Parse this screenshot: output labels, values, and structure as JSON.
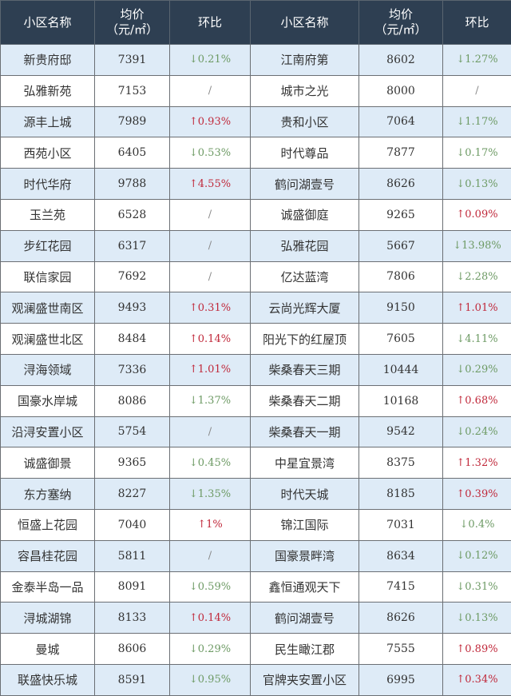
{
  "colors": {
    "header_bg": "#2e3f52",
    "alt_row_bg": "#deebf7",
    "up": "#c0283a",
    "down": "#6d9a64"
  },
  "header": {
    "name": "小区名称",
    "price_line1": "均价",
    "price_line2": "（元/㎡）",
    "change": "环比"
  },
  "rows": [
    {
      "l_name": "新贵府邸",
      "l_price": "7391",
      "l_change": "↓0.21%",
      "l_dir": "down",
      "r_name": "江南府第",
      "r_price": "8602",
      "r_change": "↓1.27%",
      "r_dir": "down"
    },
    {
      "l_name": "弘雅新苑",
      "l_price": "7153",
      "l_change": "/",
      "l_dir": "none",
      "r_name": "城市之光",
      "r_price": "8000",
      "r_change": "/",
      "r_dir": "none"
    },
    {
      "l_name": "源丰上城",
      "l_price": "7989",
      "l_change": "↑0.93%",
      "l_dir": "up",
      "r_name": "贵和小区",
      "r_price": "7064",
      "r_change": "↓1.17%",
      "r_dir": "down"
    },
    {
      "l_name": "西苑小区",
      "l_price": "6405",
      "l_change": "↓0.53%",
      "l_dir": "down",
      "r_name": "时代尊品",
      "r_price": "7877",
      "r_change": "↓0.17%",
      "r_dir": "down"
    },
    {
      "l_name": "时代华府",
      "l_price": "9788",
      "l_change": "↑4.55%",
      "l_dir": "up",
      "r_name": "鹤问湖壹号",
      "r_price": "8626",
      "r_change": "↓0.13%",
      "r_dir": "down"
    },
    {
      "l_name": "玉兰苑",
      "l_price": "6528",
      "l_change": "/",
      "l_dir": "none",
      "r_name": "诚盛御庭",
      "r_price": "9265",
      "r_change": "↑0.09%",
      "r_dir": "up"
    },
    {
      "l_name": "步红花园",
      "l_price": "6317",
      "l_change": "/",
      "l_dir": "none",
      "r_name": "弘雅花园",
      "r_price": "5667",
      "r_change": "↓13.98%",
      "r_dir": "down"
    },
    {
      "l_name": "联信家园",
      "l_price": "7692",
      "l_change": "/",
      "l_dir": "none",
      "r_name": "亿达蓝湾",
      "r_price": "7806",
      "r_change": "↓2.28%",
      "r_dir": "down"
    },
    {
      "l_name": "观澜盛世南区",
      "l_price": "9493",
      "l_change": "↑0.31%",
      "l_dir": "up",
      "r_name": "云尚光辉大厦",
      "r_price": "9150",
      "r_change": "↑1.01%",
      "r_dir": "up"
    },
    {
      "l_name": "观澜盛世北区",
      "l_price": "8484",
      "l_change": "↑0.14%",
      "l_dir": "up",
      "r_name": "阳光下的红屋顶",
      "r_price": "7605",
      "r_change": "↓4.11%",
      "r_dir": "down"
    },
    {
      "l_name": "浔海领域",
      "l_price": "7336",
      "l_change": "↑1.01%",
      "l_dir": "up",
      "r_name": "柴桑春天三期",
      "r_price": "10444",
      "r_change": "↓0.29%",
      "r_dir": "down"
    },
    {
      "l_name": "国豪水岸城",
      "l_price": "8086",
      "l_change": "↓1.37%",
      "l_dir": "down",
      "r_name": "柴桑春天二期",
      "r_price": "10168",
      "r_change": "↑0.68%",
      "r_dir": "up"
    },
    {
      "l_name": "沿浔安置小区",
      "l_price": "5754",
      "l_change": "/",
      "l_dir": "none",
      "r_name": "柴桑春天一期",
      "r_price": "9542",
      "r_change": "↓0.24%",
      "r_dir": "down"
    },
    {
      "l_name": "诚盛御景",
      "l_price": "9365",
      "l_change": "↓0.45%",
      "l_dir": "down",
      "r_name": "中星宜景湾",
      "r_price": "8375",
      "r_change": "↑1.32%",
      "r_dir": "up"
    },
    {
      "l_name": "东方塞纳",
      "l_price": "8227",
      "l_change": "↓1.35%",
      "l_dir": "down",
      "r_name": "时代天城",
      "r_price": "8185",
      "r_change": "↑0.39%",
      "r_dir": "up"
    },
    {
      "l_name": "恒盛上花园",
      "l_price": "7040",
      "l_change": "↑1%",
      "l_dir": "up",
      "r_name": "锦江国际",
      "r_price": "7031",
      "r_change": "↓0.4%",
      "r_dir": "down"
    },
    {
      "l_name": "容昌桂花园",
      "l_price": "5811",
      "l_change": "/",
      "l_dir": "none",
      "r_name": "国豪景畔湾",
      "r_price": "8634",
      "r_change": "↓0.12%",
      "r_dir": "down"
    },
    {
      "l_name": "金泰半岛一品",
      "l_price": "8091",
      "l_change": "↓0.59%",
      "l_dir": "down",
      "r_name": "鑫恒通观天下",
      "r_price": "7415",
      "r_change": "↓0.31%",
      "r_dir": "down"
    },
    {
      "l_name": "浔城湖锦",
      "l_price": "8133",
      "l_change": "↑0.14%",
      "l_dir": "up",
      "r_name": "鹤问湖壹号",
      "r_price": "8626",
      "r_change": "↓0.13%",
      "r_dir": "down"
    },
    {
      "l_name": "曼城",
      "l_price": "8606",
      "l_change": "↓0.29%",
      "l_dir": "down",
      "r_name": "民生瞰江郡",
      "r_price": "7555",
      "r_change": "↑0.89%",
      "r_dir": "up"
    },
    {
      "l_name": "联盛快乐城",
      "l_price": "8591",
      "l_change": "↓0.95%",
      "l_dir": "down",
      "r_name": "官牌夹安置小区",
      "r_price": "6995",
      "r_change": "↑0.34%",
      "r_dir": "up"
    }
  ]
}
